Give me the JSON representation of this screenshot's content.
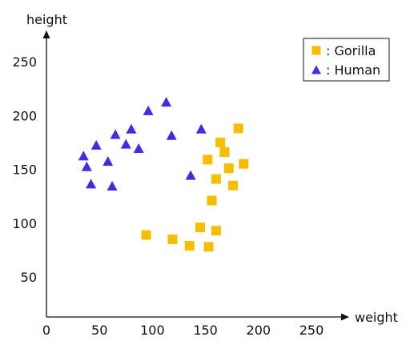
{
  "chart_data": {
    "type": "scatter",
    "xlabel": "weight",
    "ylabel": "height",
    "xlim": [
      0,
      275
    ],
    "ylim": [
      25,
      275
    ],
    "x_ticks": [
      0,
      50,
      100,
      150,
      200,
      250
    ],
    "y_ticks": [
      50,
      100,
      150,
      200,
      250
    ],
    "legend_position": "top-right",
    "grid": false,
    "series": [
      {
        "name": ": Gorilla",
        "marker": "square",
        "color": "#F7BE00",
        "points": [
          [
            94,
            89
          ],
          [
            119,
            85
          ],
          [
            135,
            79
          ],
          [
            145,
            96
          ],
          [
            153,
            78
          ],
          [
            160,
            93
          ],
          [
            152,
            159
          ],
          [
            156,
            121
          ],
          [
            160,
            141
          ],
          [
            164,
            175
          ],
          [
            168,
            166
          ],
          [
            172,
            151
          ],
          [
            176,
            135
          ],
          [
            181,
            188
          ],
          [
            186,
            155
          ]
        ]
      },
      {
        "name": ": Human",
        "marker": "triangle",
        "color": "#3D2EE6",
        "points": [
          [
            35,
            162
          ],
          [
            38,
            152
          ],
          [
            42,
            136
          ],
          [
            47,
            172
          ],
          [
            58,
            157
          ],
          [
            62,
            134
          ],
          [
            65,
            182
          ],
          [
            75,
            173
          ],
          [
            80,
            187
          ],
          [
            87,
            169
          ],
          [
            96,
            204
          ],
          [
            113,
            212
          ],
          [
            118,
            181
          ],
          [
            136,
            144
          ],
          [
            146,
            187
          ]
        ]
      }
    ]
  }
}
